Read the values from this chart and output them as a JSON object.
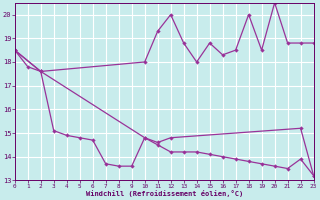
{
  "xlabel": "Windchill (Refroidissement éolien,°C)",
  "xlim": [
    0,
    23
  ],
  "ylim": [
    13,
    20.5
  ],
  "yticks": [
    13,
    14,
    15,
    16,
    17,
    18,
    19,
    20
  ],
  "xticks": [
    0,
    1,
    2,
    3,
    4,
    5,
    6,
    7,
    8,
    9,
    10,
    11,
    12,
    13,
    14,
    15,
    16,
    17,
    18,
    19,
    20,
    21,
    22,
    23
  ],
  "bg_color": "#c8ecec",
  "line_color": "#993399",
  "grid_color": "#b0dede",
  "line1_x": [
    0,
    1,
    2,
    10,
    11,
    12,
    13,
    14,
    15,
    16,
    17,
    18,
    19,
    20,
    21,
    22,
    23
  ],
  "line1_y": [
    18.5,
    17.8,
    17.6,
    18.0,
    19.3,
    20.0,
    18.8,
    18.0,
    18.8,
    18.3,
    18.5,
    20.0,
    18.5,
    20.5,
    18.8,
    18.8,
    18.8
  ],
  "line2_x": [
    0,
    2,
    3,
    4,
    5,
    6,
    7,
    8,
    9,
    10,
    11,
    12,
    22,
    23
  ],
  "line2_y": [
    18.5,
    17.6,
    15.1,
    14.9,
    14.8,
    14.7,
    13.7,
    13.6,
    13.6,
    14.8,
    14.6,
    14.8,
    15.2,
    13.2
  ],
  "line3_x": [
    0,
    2,
    10,
    11,
    12,
    13,
    14,
    15,
    16,
    17,
    18,
    19,
    20,
    21,
    22,
    23
  ],
  "line3_y": [
    18.5,
    17.6,
    14.8,
    14.5,
    14.2,
    14.2,
    14.2,
    14.1,
    14.0,
    13.9,
    13.8,
    13.7,
    13.6,
    13.5,
    13.9,
    13.2
  ]
}
